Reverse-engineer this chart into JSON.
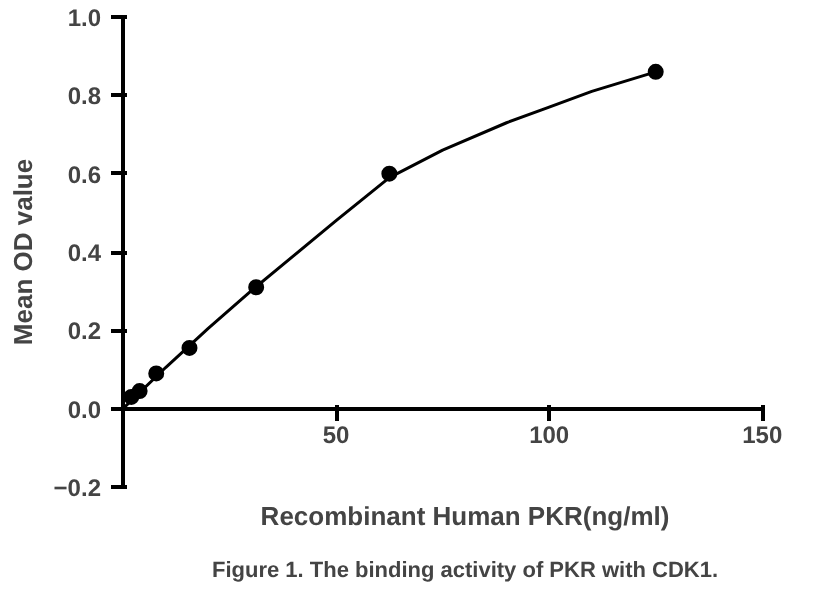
{
  "chart_data": {
    "type": "scatter",
    "xlabel": "Recombinant Human PKR(ng/ml)",
    "ylabel": "Mean OD value",
    "annotations": [
      "Figure 1. The binding activity of PKR with CDK1."
    ],
    "series": [
      {
        "marker": "circle",
        "color": "#000000",
        "x": [
          1.95,
          3.9,
          7.8,
          15.6,
          31.25,
          62.5,
          125
        ],
        "values": [
          0.03,
          0.045,
          0.09,
          0.155,
          0.31,
          0.6,
          0.86
        ]
      },
      {
        "type": "line",
        "marker": "none",
        "color": "#000000",
        "x": [
          0,
          10,
          20,
          30,
          40,
          50,
          62.5,
          75,
          90,
          100,
          110,
          125
        ],
        "values": [
          0,
          0.105,
          0.205,
          0.3,
          0.39,
          0.48,
          0.59,
          0.66,
          0.73,
          0.77,
          0.81,
          0.86
        ]
      }
    ],
    "xlim": [
      0,
      150
    ],
    "xticks": [
      50,
      100,
      150
    ],
    "ylim": [
      -0.2,
      1.0
    ],
    "yticks": [
      -0.2,
      {
        "value": 0,
        "label": "0.0"
      },
      0.2,
      0.4,
      0.6,
      0.8,
      {
        "value": 1,
        "label": "1.0"
      }
    ],
    "grid": false
  }
}
